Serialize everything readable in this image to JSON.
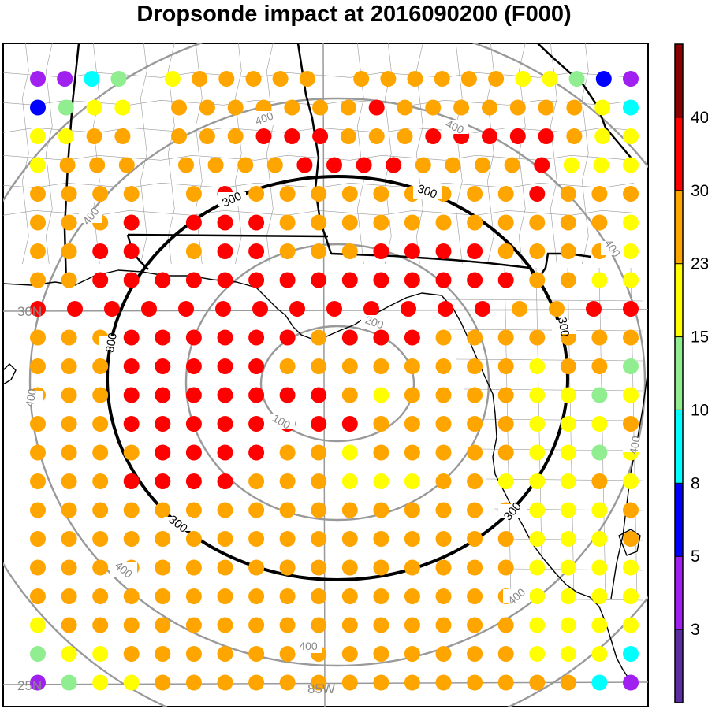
{
  "title": "Dropsonde impact at 2016090200 (F000)",
  "map": {
    "lat_labels": [
      "30N",
      "25N"
    ],
    "lon_labels": [
      "85W"
    ],
    "range_ring_labels": [
      "100",
      "200",
      "300",
      "400"
    ],
    "coast_color": "#000000",
    "ring_color": "#999999",
    "highlight_ring_label": "300"
  },
  "colorbar": {
    "tick_labels": [
      "3",
      "5",
      "8",
      "10",
      "15",
      "23",
      "30",
      "40"
    ],
    "colors": [
      "#5a2da0",
      "#a020f0",
      "#0000ff",
      "#00ffff",
      "#90ee90",
      "#ffff00",
      "#ffa500",
      "#ff0000",
      "#8b0000"
    ]
  },
  "points": {
    "palette": {
      "I": "#5a2da0",
      "P": "#a020f0",
      "B": "#0000ff",
      "C": "#00ffff",
      "G": "#90ee90",
      "Y": "#ffff00",
      "O": "#ffa500",
      "R": "#ff0000"
    },
    "rows": [
      "PPCG.YOOOOO.OOOOOOYYGBP",
      "BGYY.OOOOOOOROOOOOOOYC",
      "YYOO.OOORRROOORRRRROYY",
      "YOOO.OOOORRRROOOORYYY",
      "OOOO.OROOOOOOOOOROOO",
      "OOOR.RRROOOOOOOOOOOY",
      "OORR.ORROOORRRROOOOY",
      "OORRRRRRRRRRRRRROOYY",
      "RRRRRRRRRRRRROORR",
      "OOORRRRRRORRROOOOOOO",
      "OOORRRRROOOOOOOOYOOG",
      "OOORRRRRRROYOOOOYYGY",
      "OOORRRRRRRROOOOOYYYO",
      "OOOORRRROOYOOOOOYYGY",
      "OOORRRROOOYYYOOYYYOY",
      "OOOOOOOOOOOOOOOOYYYO",
      "OOOOOOOOOOOOOOOOYYYO",
      "OOOOOOOOOOOOOOOOYYYY",
      "OOOOOOOOOOOOOOOOYYYY",
      "YOOOOOOOOOOOOOOOYYYY",
      "GYYOOOOOOOOOOOOOYYYC",
      "PGYYOOOOOOOOOOOOOOCP"
    ]
  }
}
